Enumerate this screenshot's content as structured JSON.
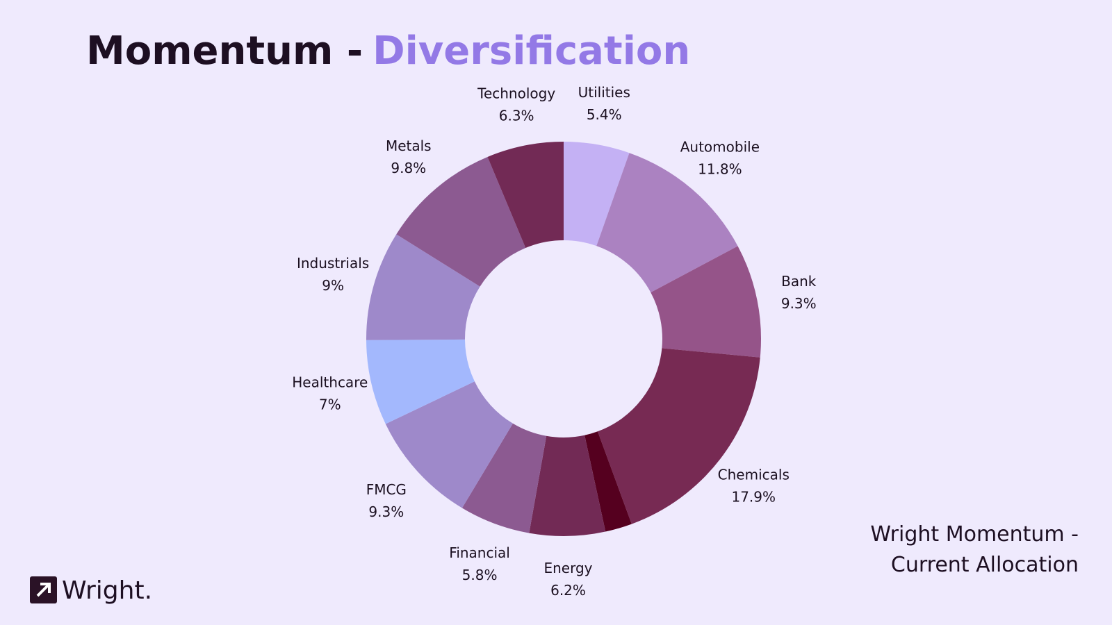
{
  "header": {
    "title_start": "Momentum -",
    "title_end": "Diversification"
  },
  "chart_data": {
    "type": "donut",
    "categories": [
      "Utilities",
      "Automobile",
      "Bank",
      "Chemicals",
      null,
      "Energy",
      "Financial",
      "FMCG",
      "Healthcare",
      "Industrials",
      "Metals",
      "Technology"
    ],
    "values": [
      5.4,
      11.8,
      9.3,
      17.9,
      2.2,
      6.2,
      5.8,
      9.3,
      7,
      9,
      9.8,
      6.3
    ],
    "value_labels": [
      "5.4%",
      "11.8%",
      "9.3%",
      "17.9%",
      null,
      "6.2%",
      "5.8%",
      "9.3%",
      "7%",
      "9%",
      "9.8%",
      "6.3%"
    ],
    "colors": [
      "#c4b1f4",
      "#ab82c1",
      "#955489",
      "#772a53",
      "#55001f",
      "#722a55",
      "#8c5a91",
      "#9e89ca",
      "#a3b8fd",
      "#9e89ca",
      "#8c5a91",
      "#722a55"
    ]
  },
  "caption": [
    "Wright Momentum -",
    "Current Allocation"
  ],
  "logo": "Wright."
}
